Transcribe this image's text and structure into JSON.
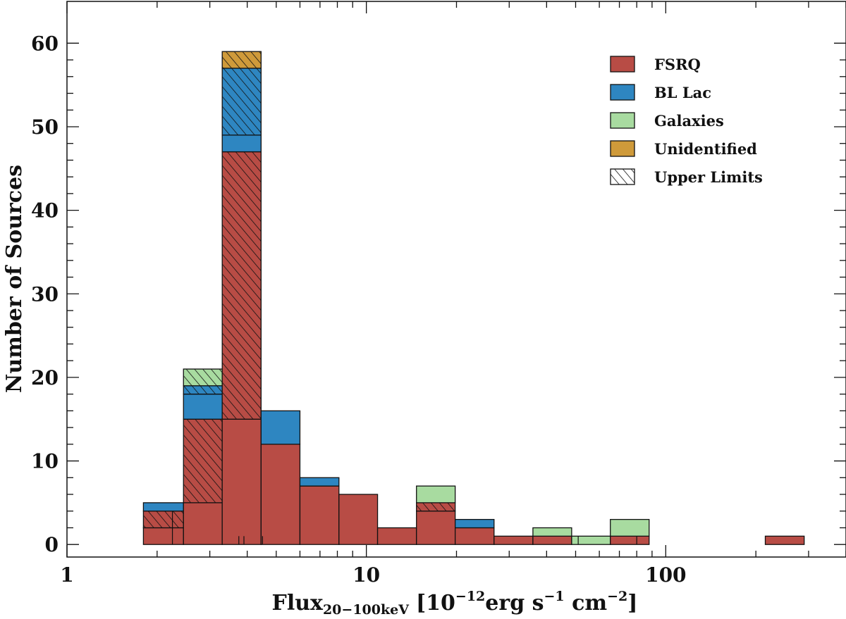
{
  "chart_data": {
    "type": "bar",
    "subtype": "stacked-histogram",
    "xscale": "log",
    "xlim": [
      1,
      400
    ],
    "ylim": [
      -1.5,
      65
    ],
    "xlabel": {
      "main": "Flux",
      "subscript": "20−100keV",
      "units_prefix": "[10",
      "units_exp1": "−12",
      "units_mid": "erg s",
      "units_exp2": "−1",
      "units_mid2": " cm",
      "units_exp3": "−2",
      "units_suffix": "]"
    },
    "ylabel": "Number of Sources",
    "x_ticks": [
      {
        "value": 1,
        "label": "1"
      },
      {
        "value": 10,
        "label": "10"
      },
      {
        "value": 100,
        "label": "100"
      }
    ],
    "y_ticks": [
      {
        "value": 0,
        "label": "0"
      },
      {
        "value": 10,
        "label": "10"
      },
      {
        "value": 20,
        "label": "20"
      },
      {
        "value": 30,
        "label": "30"
      },
      {
        "value": 40,
        "label": "40"
      },
      {
        "value": 50,
        "label": "50"
      },
      {
        "value": 60,
        "label": "60"
      }
    ],
    "legend_position": "top-right",
    "legend": [
      {
        "label": "FSRQ",
        "color": "#b84c45",
        "hatch": false
      },
      {
        "label": "BL Lac",
        "color": "#2e86c1",
        "hatch": false
      },
      {
        "label": "Galaxies",
        "color": "#a8dba0",
        "hatch": false
      },
      {
        "label": "Unidentified",
        "color": "#cf9a3a",
        "hatch": false
      },
      {
        "label": "Upper Limits",
        "color": "#ffffff",
        "hatch": true
      }
    ],
    "bins": [
      {
        "lo": 1.8,
        "hi": 2.45,
        "segments": [
          {
            "class": "FSRQ",
            "value": 2,
            "upper_limit": false
          },
          {
            "class": "FSRQ",
            "value": 2,
            "upper_limit": true
          },
          {
            "class": "BL Lac",
            "value": 1,
            "upper_limit": false
          }
        ]
      },
      {
        "lo": 2.45,
        "hi": 3.3,
        "segments": [
          {
            "class": "FSRQ",
            "value": 5,
            "upper_limit": false
          },
          {
            "class": "FSRQ",
            "value": 10,
            "upper_limit": true
          },
          {
            "class": "BL Lac",
            "value": 3,
            "upper_limit": false
          },
          {
            "class": "BL Lac",
            "value": 1,
            "upper_limit": true
          },
          {
            "class": "Galaxies",
            "value": 2,
            "upper_limit": true
          }
        ]
      },
      {
        "lo": 3.3,
        "hi": 4.45,
        "segments": [
          {
            "class": "FSRQ",
            "value": 15,
            "upper_limit": false
          },
          {
            "class": "FSRQ",
            "value": 32,
            "upper_limit": true
          },
          {
            "class": "BL Lac",
            "value": 2,
            "upper_limit": false
          },
          {
            "class": "BL Lac",
            "value": 8,
            "upper_limit": true
          },
          {
            "class": "Unidentified",
            "value": 2,
            "upper_limit": true
          }
        ]
      },
      {
        "lo": 4.45,
        "hi": 6.0,
        "segments": [
          {
            "class": "FSRQ",
            "value": 12,
            "upper_limit": false
          },
          {
            "class": "BL Lac",
            "value": 4,
            "upper_limit": false
          }
        ]
      },
      {
        "lo": 6.0,
        "hi": 8.1,
        "segments": [
          {
            "class": "FSRQ",
            "value": 7,
            "upper_limit": false
          },
          {
            "class": "BL Lac",
            "value": 1,
            "upper_limit": false
          }
        ]
      },
      {
        "lo": 8.1,
        "hi": 10.9,
        "segments": [
          {
            "class": "FSRQ",
            "value": 6,
            "upper_limit": false
          }
        ]
      },
      {
        "lo": 10.9,
        "hi": 14.7,
        "segments": [
          {
            "class": "FSRQ",
            "value": 2,
            "upper_limit": false
          }
        ]
      },
      {
        "lo": 14.7,
        "hi": 19.8,
        "segments": [
          {
            "class": "FSRQ",
            "value": 4,
            "upper_limit": false
          },
          {
            "class": "FSRQ",
            "value": 1,
            "upper_limit": true
          },
          {
            "class": "Galaxies",
            "value": 2,
            "upper_limit": false
          }
        ]
      },
      {
        "lo": 19.8,
        "hi": 26.7,
        "segments": [
          {
            "class": "FSRQ",
            "value": 2,
            "upper_limit": false
          },
          {
            "class": "BL Lac",
            "value": 1,
            "upper_limit": false
          }
        ]
      },
      {
        "lo": 26.7,
        "hi": 36.0,
        "segments": [
          {
            "class": "FSRQ",
            "value": 1,
            "upper_limit": false
          }
        ]
      },
      {
        "lo": 36.0,
        "hi": 48.5,
        "segments": [
          {
            "class": "FSRQ",
            "value": 1,
            "upper_limit": false
          },
          {
            "class": "Galaxies",
            "value": 1,
            "upper_limit": false
          }
        ]
      },
      {
        "lo": 48.5,
        "hi": 65.3,
        "segments": [
          {
            "class": "Galaxies",
            "value": 1,
            "upper_limit": false
          }
        ]
      },
      {
        "lo": 65.3,
        "hi": 88.0,
        "segments": [
          {
            "class": "FSRQ",
            "value": 1,
            "upper_limit": false
          },
          {
            "class": "Galaxies",
            "value": 2,
            "upper_limit": false
          }
        ]
      },
      {
        "lo": 215.0,
        "hi": 290.0,
        "segments": [
          {
            "class": "FSRQ",
            "value": 1,
            "upper_limit": false
          }
        ]
      }
    ],
    "bin_edge_marks": [
      {
        "x": 2.25,
        "ylo": 0,
        "yhi": 4
      },
      {
        "x": 3.9,
        "ylo": 0,
        "yhi": 1
      },
      {
        "x": 4.5,
        "ylo": 0,
        "yhi": 1
      },
      {
        "x": 3.75,
        "ylo": 0,
        "yhi": 1
      },
      {
        "x": 80.0,
        "ylo": 0,
        "yhi": 1
      },
      {
        "x": 51.0,
        "ylo": 0,
        "yhi": 1
      }
    ]
  }
}
